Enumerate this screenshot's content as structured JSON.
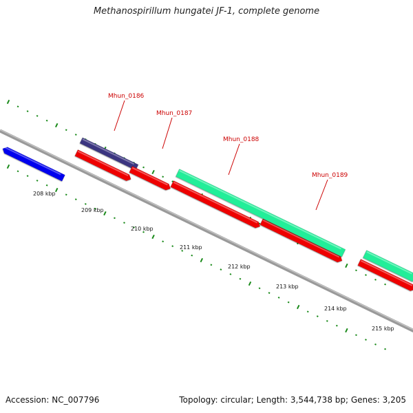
{
  "title": "Methanospirillum hungatei JF-1, complete genome",
  "footer": {
    "accession": "Accession: NC_007796",
    "topology": "Topology: circular; Length: 3,544,738 bp; Genes: 3,205"
  },
  "colors": {
    "backbone": "#808080",
    "tick": "#1a8a1a",
    "label_red": "#cc0000",
    "gene_blue": "#0000ee",
    "gene_navy": "#3b3580",
    "gene_red": "#ee0000",
    "gene_teal": "#22ee99"
  },
  "scale_labels": [
    "208 kbp",
    "209 kbp",
    "210 kbp",
    "211 kbp",
    "212 kbp",
    "213 kbp",
    "214 kbp",
    "215 kbp"
  ],
  "genes": [
    {
      "name": "",
      "color": "gene_blue"
    },
    {
      "name": "",
      "color": "gene_navy"
    },
    {
      "name": "Mhun_0186",
      "color": "gene_red"
    },
    {
      "name": "Mhun_0187",
      "color": "gene_red"
    },
    {
      "name": "Mhun_0188",
      "color": "gene_teal"
    },
    {
      "name": "Mhun_0189",
      "color": "gene_red"
    }
  ]
}
